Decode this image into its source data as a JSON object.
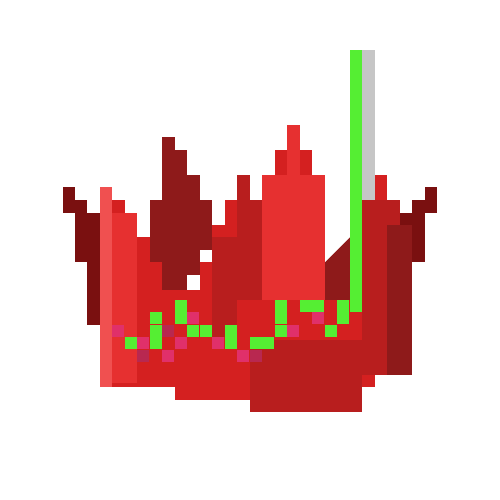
{
  "sprite": {
    "subject": "pixel-art-red-crown",
    "palette": {
      "deep": "#7a1010",
      "dark": "#8e1a1a",
      "mid": "#b81e1e",
      "main": "#d42020",
      "bright": "#e63030",
      "light": "#f05050",
      "pink": "#e0306a",
      "pink_dark": "#b82850",
      "green": "#55ee33",
      "gray": "#c6c6c6"
    }
  }
}
